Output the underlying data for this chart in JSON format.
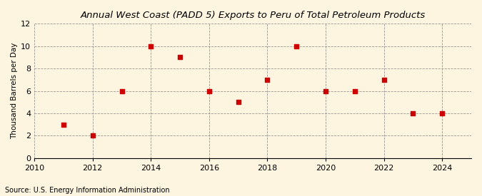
{
  "title": "Annual West Coast (PADD 5) Exports to Peru of Total Petroleum Products",
  "ylabel": "Thousand Barrels per Day",
  "source": "Source: U.S. Energy Information Administration",
  "background_color": "#fdf5e0",
  "x_values": [
    2011,
    2012,
    2013,
    2014,
    2015,
    2016,
    2017,
    2018,
    2019,
    2020,
    2021,
    2022,
    2023,
    2024
  ],
  "y_values": [
    3,
    2,
    6,
    10,
    9,
    6,
    5,
    7,
    10,
    6,
    6,
    7,
    4,
    4
  ],
  "marker_color": "#cc0000",
  "marker_size": 22,
  "xlim": [
    2010,
    2025
  ],
  "ylim": [
    0,
    12
  ],
  "xticks": [
    2010,
    2012,
    2014,
    2016,
    2018,
    2020,
    2022,
    2024
  ],
  "yticks": [
    0,
    2,
    4,
    6,
    8,
    10,
    12
  ],
  "title_fontsize": 9.5,
  "label_fontsize": 7.5,
  "tick_fontsize": 8,
  "source_fontsize": 7
}
